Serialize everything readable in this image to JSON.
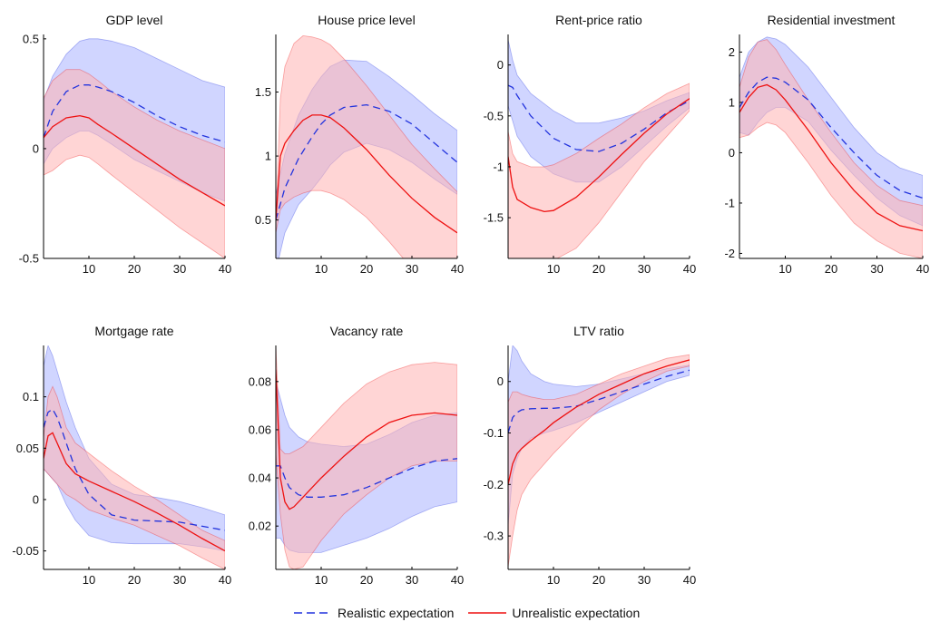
{
  "legend": {
    "realistic": "Realistic expectation",
    "unrealistic": "Unrealistic expectation"
  },
  "colors": {
    "realistic_line": "#2233dd",
    "realistic_band": "#aab2ff",
    "unrealistic_line": "#ee1111",
    "unrealistic_band": "#ffb3b3"
  },
  "chart_data": [
    {
      "type": "line",
      "title": "GDP level",
      "xlim": [
        0,
        40
      ],
      "ylim": [
        -0.5,
        0.52
      ],
      "xticks": [
        "10",
        "20",
        "30",
        "40"
      ],
      "yticks": [
        "-0.5",
        "0",
        "0.5"
      ],
      "ytick_values": [
        -0.5,
        0,
        0.5
      ],
      "series": [
        {
          "name": "Realistic expectation",
          "x": [
            0,
            2,
            5,
            8,
            10,
            12,
            15,
            20,
            25,
            30,
            35,
            40
          ],
          "y": [
            0.05,
            0.17,
            0.26,
            0.29,
            0.29,
            0.28,
            0.26,
            0.21,
            0.15,
            0.1,
            0.06,
            0.03
          ],
          "lower": [
            -0.07,
            0.0,
            0.05,
            0.08,
            0.08,
            0.06,
            0.02,
            -0.05,
            -0.1,
            -0.15,
            -0.2,
            -0.24
          ],
          "upper": [
            0.22,
            0.33,
            0.43,
            0.49,
            0.5,
            0.5,
            0.49,
            0.46,
            0.41,
            0.36,
            0.31,
            0.28
          ]
        },
        {
          "name": "Unrealistic expectation",
          "x": [
            0,
            2,
            5,
            8,
            10,
            12,
            15,
            20,
            25,
            30,
            35,
            40
          ],
          "y": [
            0.05,
            0.1,
            0.14,
            0.15,
            0.14,
            0.11,
            0.07,
            0.0,
            -0.07,
            -0.14,
            -0.2,
            -0.26
          ],
          "lower": [
            -0.12,
            -0.1,
            -0.05,
            -0.03,
            -0.04,
            -0.07,
            -0.12,
            -0.2,
            -0.28,
            -0.36,
            -0.43,
            -0.5
          ],
          "upper": [
            0.23,
            0.31,
            0.36,
            0.36,
            0.34,
            0.31,
            0.26,
            0.19,
            0.13,
            0.08,
            0.04,
            0.0
          ]
        }
      ]
    },
    {
      "type": "line",
      "title": "House price level",
      "xlim": [
        0,
        40
      ],
      "ylim": [
        0.2,
        1.95
      ],
      "xticks": [
        "10",
        "20",
        "30",
        "40"
      ],
      "yticks": [
        "0.5",
        "1",
        "1.5"
      ],
      "ytick_values": [
        0.5,
        1,
        1.5
      ],
      "series": [
        {
          "name": "Realistic expectation",
          "x": [
            0,
            2,
            5,
            8,
            10,
            12,
            15,
            20,
            25,
            30,
            35,
            40
          ],
          "y": [
            0.5,
            0.75,
            0.98,
            1.15,
            1.25,
            1.32,
            1.38,
            1.4,
            1.35,
            1.25,
            1.1,
            0.95
          ],
          "lower": [
            0.1,
            0.4,
            0.62,
            0.74,
            0.83,
            0.93,
            1.03,
            1.1,
            1.05,
            0.95,
            0.82,
            0.7
          ],
          "upper": [
            0.7,
            1.02,
            1.32,
            1.52,
            1.62,
            1.7,
            1.75,
            1.74,
            1.62,
            1.48,
            1.33,
            1.2
          ]
        },
        {
          "name": "Unrealistic expectation",
          "x": [
            0,
            1,
            2,
            4,
            6,
            8,
            10,
            12,
            15,
            20,
            25,
            30,
            35,
            40
          ],
          "y": [
            0.5,
            1.0,
            1.1,
            1.2,
            1.28,
            1.32,
            1.32,
            1.3,
            1.22,
            1.05,
            0.85,
            0.67,
            0.52,
            0.4
          ],
          "lower": [
            0.4,
            0.58,
            0.63,
            0.68,
            0.71,
            0.73,
            0.73,
            0.71,
            0.66,
            0.52,
            0.33,
            0.12,
            -0.05,
            -0.2
          ],
          "upper": [
            0.5,
            1.45,
            1.7,
            1.88,
            1.94,
            1.93,
            1.91,
            1.87,
            1.76,
            1.55,
            1.32,
            1.09,
            0.9,
            0.72
          ]
        }
      ]
    },
    {
      "type": "line",
      "title": "Rent-price ratio",
      "xlim": [
        0,
        40
      ],
      "ylim": [
        -1.9,
        0.3
      ],
      "xticks": [
        "10",
        "20",
        "30",
        "40"
      ],
      "yticks": [
        "-1.5",
        "-1",
        "-0.5",
        "0"
      ],
      "ytick_values": [
        -1.5,
        -1,
        -0.5,
        0
      ],
      "series": [
        {
          "name": "Realistic expectation",
          "x": [
            0,
            1,
            2,
            5,
            10,
            15,
            20,
            25,
            30,
            35,
            40
          ],
          "y": [
            -0.2,
            -0.22,
            -0.3,
            -0.5,
            -0.72,
            -0.83,
            -0.85,
            -0.77,
            -0.63,
            -0.47,
            -0.35
          ],
          "lower": [
            -0.4,
            -0.55,
            -0.7,
            -0.9,
            -1.07,
            -1.15,
            -1.15,
            -1.0,
            -0.8,
            -0.6,
            -0.42
          ],
          "upper": [
            0.25,
            0.05,
            -0.1,
            -0.28,
            -0.45,
            -0.57,
            -0.57,
            -0.52,
            -0.45,
            -0.35,
            -0.27
          ]
        },
        {
          "name": "Unrealistic expectation",
          "x": [
            0,
            1,
            2,
            5,
            8,
            10,
            15,
            20,
            25,
            30,
            35,
            40
          ],
          "y": [
            -0.9,
            -1.2,
            -1.32,
            -1.4,
            -1.44,
            -1.43,
            -1.3,
            -1.1,
            -0.88,
            -0.67,
            -0.48,
            -0.33
          ],
          "lower": [
            -1.9,
            -1.9,
            -1.9,
            -1.95,
            -1.95,
            -1.92,
            -1.8,
            -1.55,
            -1.25,
            -0.95,
            -0.7,
            -0.45
          ],
          "upper": [
            -0.65,
            -0.87,
            -0.95,
            -1.0,
            -1.0,
            -0.98,
            -0.87,
            -0.72,
            -0.58,
            -0.42,
            -0.28,
            -0.18
          ]
        }
      ]
    },
    {
      "type": "line",
      "title": "Residential investment",
      "xlim": [
        0,
        40
      ],
      "ylim": [
        -2.1,
        2.35
      ],
      "xticks": [
        "10",
        "20",
        "30",
        "40"
      ],
      "yticks": [
        "-2",
        "-1",
        "0",
        "1",
        "2"
      ],
      "ytick_values": [
        -2,
        -1,
        0,
        1,
        2
      ],
      "series": [
        {
          "name": "Realistic expectation",
          "x": [
            0,
            2,
            4,
            6,
            8,
            10,
            15,
            20,
            25,
            30,
            35,
            40
          ],
          "y": [
            0.9,
            1.2,
            1.4,
            1.5,
            1.48,
            1.4,
            1.05,
            0.5,
            0.0,
            -0.45,
            -0.75,
            -0.9
          ],
          "lower": [
            0.4,
            0.35,
            0.6,
            0.8,
            0.9,
            0.9,
            0.62,
            0.05,
            -0.45,
            -0.9,
            -1.25,
            -1.45
          ],
          "upper": [
            1.5,
            2.0,
            2.2,
            2.3,
            2.26,
            2.15,
            1.7,
            1.1,
            0.5,
            0.0,
            -0.3,
            -0.45
          ]
        },
        {
          "name": "Unrealistic expectation",
          "x": [
            0,
            2,
            4,
            6,
            8,
            10,
            15,
            20,
            25,
            30,
            35,
            40
          ],
          "y": [
            0.8,
            1.1,
            1.3,
            1.35,
            1.25,
            1.05,
            0.45,
            -0.2,
            -0.75,
            -1.2,
            -1.45,
            -1.55
          ],
          "lower": [
            0.3,
            0.35,
            0.5,
            0.6,
            0.55,
            0.4,
            -0.2,
            -0.85,
            -1.4,
            -1.75,
            -2.0,
            -2.1
          ],
          "upper": [
            1.3,
            1.9,
            2.2,
            2.25,
            2.05,
            1.75,
            1.05,
            0.4,
            -0.2,
            -0.65,
            -0.95,
            -1.05
          ]
        }
      ]
    },
    {
      "type": "line",
      "title": "Mortgage rate",
      "xlim": [
        0,
        40
      ],
      "ylim": [
        -0.068,
        0.15
      ],
      "xticks": [
        "10",
        "20",
        "30",
        "40"
      ],
      "yticks": [
        "-0.05",
        "0",
        "0.05",
        "0.1"
      ],
      "ytick_values": [
        -0.05,
        0,
        0.05,
        0.1
      ],
      "series": [
        {
          "name": "Realistic expectation",
          "x": [
            0,
            1,
            2,
            3,
            4,
            5,
            7,
            10,
            15,
            20,
            25,
            30,
            35,
            40
          ],
          "y": [
            0.07,
            0.085,
            0.088,
            0.08,
            0.068,
            0.055,
            0.03,
            0.005,
            -0.015,
            -0.02,
            -0.021,
            -0.022,
            -0.026,
            -0.03
          ],
          "lower": [
            0.03,
            0.025,
            0.02,
            0.015,
            0.005,
            -0.005,
            -0.02,
            -0.035,
            -0.042,
            -0.043,
            -0.043,
            -0.043,
            -0.046,
            -0.05
          ],
          "upper": [
            0.13,
            0.15,
            0.14,
            0.125,
            0.11,
            0.095,
            0.07,
            0.04,
            0.015,
            0.005,
            0.002,
            -0.002,
            -0.008,
            -0.015
          ]
        },
        {
          "name": "Unrealistic expectation",
          "x": [
            0,
            1,
            2,
            3,
            4,
            5,
            7,
            10,
            15,
            20,
            25,
            30,
            35,
            40
          ],
          "y": [
            0.04,
            0.062,
            0.065,
            0.055,
            0.045,
            0.035,
            0.025,
            0.018,
            0.008,
            -0.002,
            -0.013,
            -0.025,
            -0.038,
            -0.05
          ],
          "lower": [
            0.03,
            0.025,
            0.02,
            0.015,
            0.01,
            0.005,
            0.0,
            -0.01,
            -0.018,
            -0.025,
            -0.035,
            -0.045,
            -0.057,
            -0.068
          ],
          "upper": [
            0.06,
            0.1,
            0.11,
            0.1,
            0.085,
            0.07,
            0.055,
            0.045,
            0.028,
            0.013,
            0.0,
            -0.015,
            -0.03,
            -0.04
          ]
        }
      ]
    },
    {
      "type": "line",
      "title": "Vacancy rate",
      "xlim": [
        0,
        40
      ],
      "ylim": [
        0.002,
        0.095
      ],
      "xticks": [
        "10",
        "20",
        "30",
        "40"
      ],
      "yticks": [
        "0.02",
        "0.04",
        "0.06",
        "0.08"
      ],
      "ytick_values": [
        0.02,
        0.04,
        0.06,
        0.08
      ],
      "series": [
        {
          "name": "Realistic expectation",
          "x": [
            0,
            1,
            2,
            3,
            5,
            7,
            10,
            15,
            20,
            25,
            30,
            35,
            40
          ],
          "y": [
            0.045,
            0.045,
            0.04,
            0.036,
            0.033,
            0.032,
            0.032,
            0.033,
            0.036,
            0.04,
            0.044,
            0.047,
            0.048
          ],
          "lower": [
            0.015,
            0.015,
            0.012,
            0.01,
            0.009,
            0.009,
            0.009,
            0.012,
            0.015,
            0.019,
            0.024,
            0.028,
            0.03
          ],
          "upper": [
            0.08,
            0.073,
            0.066,
            0.061,
            0.057,
            0.055,
            0.054,
            0.053,
            0.054,
            0.058,
            0.063,
            0.066,
            0.067
          ]
        },
        {
          "name": "Unrealistic expectation",
          "x": [
            0,
            1,
            2,
            3,
            4,
            6,
            10,
            15,
            20,
            25,
            30,
            35,
            40
          ],
          "y": [
            0.085,
            0.04,
            0.03,
            0.027,
            0.028,
            0.032,
            0.04,
            0.049,
            0.057,
            0.063,
            0.066,
            0.067,
            0.066
          ],
          "lower": [
            0.05,
            0.025,
            0.01,
            0.003,
            0.002,
            0.003,
            0.014,
            0.025,
            0.033,
            0.04,
            0.045,
            0.047,
            0.047
          ],
          "upper": [
            0.095,
            0.052,
            0.05,
            0.05,
            0.051,
            0.053,
            0.061,
            0.071,
            0.079,
            0.084,
            0.087,
            0.088,
            0.087
          ]
        }
      ]
    },
    {
      "type": "line",
      "title": "LTV ratio",
      "xlim": [
        0,
        40
      ],
      "ylim": [
        -0.365,
        0.07
      ],
      "xticks": [
        "10",
        "20",
        "30",
        "40"
      ],
      "yticks": [
        "-0.3",
        "-0.2",
        "-0.1",
        "0"
      ],
      "ytick_values": [
        -0.3,
        -0.2,
        -0.1,
        0
      ],
      "series": [
        {
          "name": "Realistic expectation",
          "x": [
            0,
            1,
            2,
            3,
            5,
            8,
            10,
            15,
            20,
            25,
            30,
            35,
            40
          ],
          "y": [
            -0.1,
            -0.07,
            -0.06,
            -0.055,
            -0.053,
            -0.052,
            -0.052,
            -0.048,
            -0.035,
            -0.02,
            -0.005,
            0.01,
            0.022
          ],
          "lower": [
            -0.28,
            -0.18,
            -0.15,
            -0.13,
            -0.11,
            -0.1,
            -0.095,
            -0.08,
            -0.06,
            -0.04,
            -0.02,
            0.0,
            0.012
          ],
          "upper": [
            0.0,
            0.07,
            0.06,
            0.04,
            0.015,
            0.0,
            -0.005,
            -0.01,
            -0.005,
            0.005,
            0.015,
            0.025,
            0.032
          ]
        },
        {
          "name": "Unrealistic expectation",
          "x": [
            0,
            1,
            2,
            3,
            5,
            8,
            10,
            15,
            20,
            25,
            30,
            35,
            40
          ],
          "y": [
            -0.2,
            -0.16,
            -0.14,
            -0.13,
            -0.115,
            -0.095,
            -0.08,
            -0.05,
            -0.025,
            -0.005,
            0.015,
            0.03,
            0.042
          ],
          "lower": [
            -0.36,
            -0.3,
            -0.25,
            -0.22,
            -0.19,
            -0.16,
            -0.14,
            -0.095,
            -0.055,
            -0.025,
            0.0,
            0.02,
            0.03
          ],
          "upper": [
            -0.04,
            -0.02,
            -0.02,
            -0.025,
            -0.03,
            -0.035,
            -0.035,
            -0.025,
            -0.005,
            0.015,
            0.03,
            0.045,
            0.052
          ]
        }
      ]
    }
  ]
}
